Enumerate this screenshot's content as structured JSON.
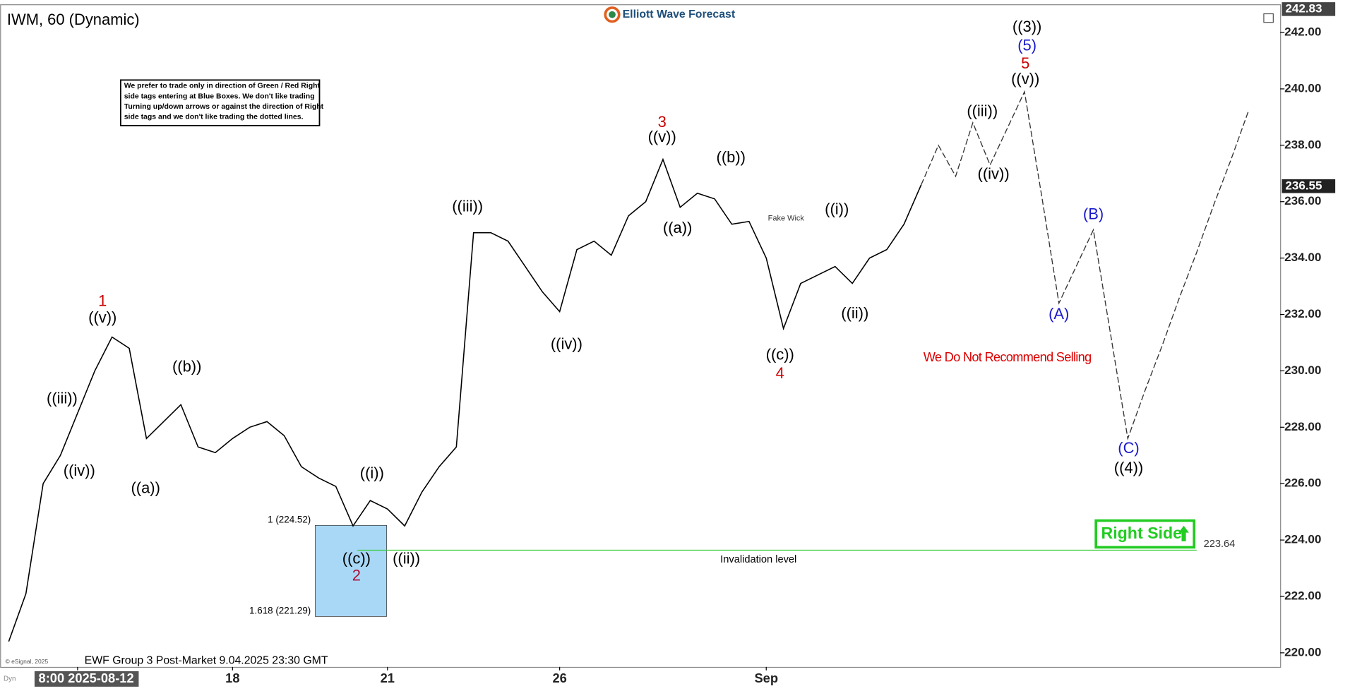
{
  "chart_data": {
    "type": "line",
    "title": "IWM, 60 (Dynamic)",
    "logo": "Elliott Wave Forecast",
    "footer": "EWF Group 3 Post-Market 9.04.2025 23:30 GMT",
    "copyright": "© eSignal, 2025",
    "axis_corner": "Dyn",
    "disclaimer": [
      "We prefer to trade only in direction of Green / Red Right",
      "side tags entering at Blue Boxes. We don't like trading",
      "Turning up/down arrows or against the direction of Right",
      "side tags and we don't like trading the dotted lines."
    ],
    "categories": [
      null,
      null,
      null,
      null,
      "8:00 2025-08-12",
      null,
      null,
      null,
      null,
      null,
      null,
      null,
      null,
      "18",
      null,
      null,
      null,
      null,
      null,
      null,
      null,
      null,
      "21",
      null,
      null,
      null,
      null,
      null,
      null,
      null,
      null,
      null,
      "26",
      null,
      null,
      null,
      null,
      null,
      null,
      null,
      null,
      null,
      null,
      null,
      "Sep",
      null,
      null,
      null,
      null,
      null,
      null,
      null,
      null,
      null,
      null,
      null,
      null,
      null,
      null,
      null,
      null,
      null,
      null,
      null,
      null,
      null,
      null,
      null,
      null,
      null,
      null,
      null,
      null
    ],
    "series": [
      {
        "color": "#000000",
        "values": [
          220.4,
          222.1,
          226.0,
          227.0,
          228.5,
          230.0,
          231.2,
          230.8,
          227.6,
          228.2,
          228.8,
          227.3,
          227.1,
          227.6,
          228.0,
          228.2,
          227.7,
          226.6,
          226.2,
          225.9,
          224.5,
          225.4,
          225.1,
          224.5,
          225.7,
          226.6,
          227.3,
          234.9,
          234.9,
          234.6,
          233.7,
          232.8,
          232.1,
          234.3,
          234.6,
          234.1,
          235.5,
          236.0,
          237.5,
          235.8,
          236.3,
          236.1,
          235.2,
          235.3,
          234.0,
          231.5,
          233.1,
          233.4,
          233.7,
          233.1,
          234.0,
          234.3,
          235.2,
          236.6,
          null,
          null,
          null,
          null,
          null,
          null,
          null,
          null,
          null,
          null,
          null,
          null,
          null,
          null,
          null,
          null,
          null,
          null,
          null
        ]
      },
      {
        "color": "#333333",
        "values": [
          null,
          null,
          null,
          null,
          null,
          null,
          null,
          null,
          null,
          null,
          null,
          null,
          null,
          null,
          null,
          null,
          null,
          null,
          null,
          null,
          null,
          null,
          null,
          null,
          null,
          null,
          null,
          null,
          null,
          null,
          null,
          null,
          null,
          null,
          null,
          null,
          null,
          null,
          null,
          null,
          null,
          null,
          null,
          null,
          null,
          null,
          null,
          null,
          null,
          null,
          null,
          null,
          null,
          236.6,
          238.0,
          236.9,
          238.8,
          237.3,
          238.6,
          239.9,
          236.2,
          232.4,
          233.7,
          235.0,
          231.3,
          227.6,
          229.3,
          230.9,
          232.6,
          234.2,
          235.9,
          237.5,
          239.2
        ]
      }
    ],
    "ylim": [
      219.5,
      243
    ],
    "yticks": [
      {
        "value": 220,
        "label": "220.00"
      },
      {
        "value": 222,
        "label": "222.00"
      },
      {
        "value": 224,
        "label": "224.00"
      },
      {
        "value": 226,
        "label": "226.00"
      },
      {
        "value": 228,
        "label": "228.00"
      },
      {
        "value": 230,
        "label": "230.00"
      },
      {
        "value": 232,
        "label": "232.00"
      },
      {
        "value": 234,
        "label": "234.00"
      },
      {
        "value": 236,
        "label": "236.00"
      },
      {
        "value": 238,
        "label": "238.00"
      },
      {
        "value": 240,
        "label": "240.00"
      },
      {
        "value": 242,
        "label": "242.00"
      }
    ],
    "price_tags": [
      242.83,
      236.55
    ],
    "invalidation_level": 223.64,
    "invalidation_label": "Invalidation level",
    "invalidation_color": "#33cc33",
    "blue_box": {
      "color": "#a9d8f7",
      "top": {
        "value": 224.52,
        "label": "1 (224.52)"
      },
      "bottom": {
        "value": 221.29,
        "label": "1.618 (221.29)"
      }
    },
    "right_side": {
      "text": "Right Side",
      "color": "#22cc22"
    },
    "annotations": [
      {
        "text": "1",
        "color": "#cc0000"
      },
      {
        "text": "((v))",
        "color": "#000000"
      },
      {
        "text": "((iii))",
        "color": "#000000"
      },
      {
        "text": "((iv))",
        "color": "#000000"
      },
      {
        "text": "((a))",
        "color": "#000000"
      },
      {
        "text": "((b))",
        "color": "#000000"
      },
      {
        "text": "((i))",
        "color": "#000000"
      },
      {
        "text": "((c))",
        "color": "#000000"
      },
      {
        "text": "2",
        "color": "#b0103a"
      },
      {
        "text": "((ii))",
        "color": "#000000"
      },
      {
        "text": "((iii))",
        "color": "#000000"
      },
      {
        "text": "((iv))",
        "color": "#000000"
      },
      {
        "text": "3",
        "color": "#cc0000"
      },
      {
        "text": "((v))",
        "color": "#000000"
      },
      {
        "text": "((a))",
        "color": "#000000"
      },
      {
        "text": "((b))",
        "color": "#000000"
      },
      {
        "text": "Fake Wick",
        "color": "#333333"
      },
      {
        "text": "((c))",
        "color": "#000000"
      },
      {
        "text": "4",
        "color": "#cc0000"
      },
      {
        "text": "((i))",
        "color": "#000000"
      },
      {
        "text": "((ii))",
        "color": "#000000"
      },
      {
        "text": "((iii))",
        "color": "#000000"
      },
      {
        "text": "((iv))",
        "color": "#000000"
      },
      {
        "text": "((3))",
        "color": "#000000"
      },
      {
        "text": "(5)",
        "color": "#1a1acc"
      },
      {
        "text": "5",
        "color": "#cc0000"
      },
      {
        "text": "((v))",
        "color": "#000000"
      },
      {
        "text": "(B)",
        "color": "#1a1acc"
      },
      {
        "text": "(A)",
        "color": "#1a1acc"
      },
      {
        "text": "(C)",
        "color": "#1a1acc"
      },
      {
        "text": "((4))",
        "color": "#000000"
      },
      {
        "text": "We Do Not Recommend Selling",
        "color": "#dd0000"
      }
    ]
  }
}
